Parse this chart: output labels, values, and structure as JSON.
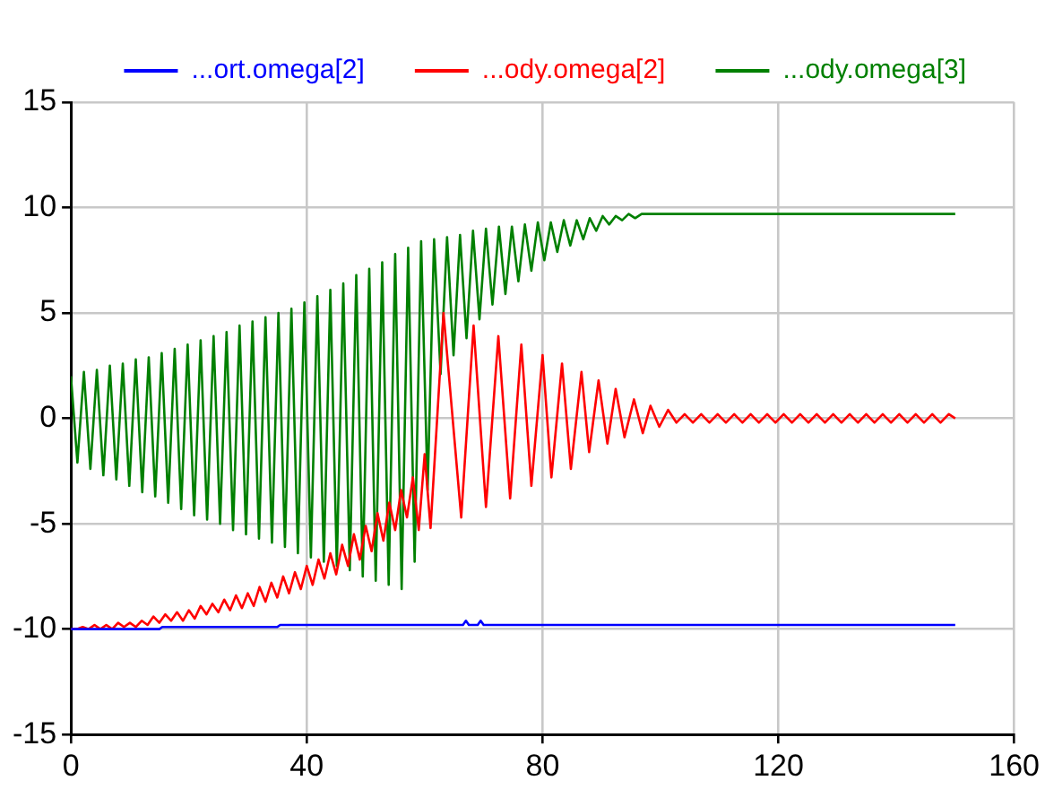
{
  "chart_data": {
    "type": "line",
    "xlim": [
      0,
      160
    ],
    "xticks": [
      0,
      40,
      80,
      120,
      160
    ],
    "ylim": [
      -15,
      15
    ],
    "yticks": [
      -15,
      -10,
      -5,
      0,
      5,
      10,
      15
    ],
    "grid": true,
    "legend": "top",
    "marker": "none",
    "line_style": "solid",
    "series": [
      {
        "name": "...ort.omega[2]",
        "color": "#0000ff",
        "type": "line",
        "x": [
          0,
          15,
          15.5,
          35,
          35.5,
          66.5,
          67,
          67.5,
          69,
          69.5,
          70,
          150
        ],
        "values": [
          -10,
          -10,
          -9.9,
          -9.9,
          -9.8,
          -9.8,
          -9.6,
          -9.8,
          -9.8,
          -9.6,
          -9.8,
          -9.8
        ]
      },
      {
        "name": "...ody.omega[2]",
        "color": "#ff0000",
        "type": "line",
        "x": [
          0,
          1,
          2,
          3,
          4,
          5,
          6,
          7,
          8,
          9,
          10,
          11,
          12,
          13,
          14,
          15,
          16,
          17,
          18,
          19,
          20,
          21,
          22,
          23,
          24,
          25,
          26,
          27,
          28,
          29,
          30,
          31,
          32,
          33,
          34,
          35,
          36,
          37,
          38,
          39,
          40,
          41,
          42,
          43,
          44,
          45,
          46,
          47,
          48,
          49,
          50,
          51,
          52,
          53,
          54,
          55,
          56,
          57,
          58,
          59,
          60,
          61,
          63.2,
          66.2,
          68.3,
          70.4,
          72.5,
          74.5,
          76.4,
          78.1,
          80,
          81.5,
          83.3,
          84.8,
          86.6,
          87.9,
          89.5,
          91,
          92.4,
          93.9,
          95.5,
          97,
          98.3,
          99.8,
          101.3,
          102.7,
          104.1,
          105.5,
          106.9,
          108.3,
          109.7,
          111.1,
          112.5,
          113.9,
          115.3,
          116.7,
          118.1,
          119.5,
          120.9,
          122.3,
          123.7,
          125.1,
          126.5,
          127.9,
          129.3,
          130.7,
          132.1,
          133.5,
          134.9,
          136.3,
          137.7,
          139.1,
          140.5,
          141.9,
          143.3,
          144.7,
          146.1,
          147.5,
          148.9,
          150
        ],
        "values": [
          -10,
          -10,
          -9.9,
          -10,
          -9.8,
          -10,
          -9.8,
          -10,
          -9.7,
          -9.9,
          -9.7,
          -9.9,
          -9.6,
          -9.8,
          -9.4,
          -9.7,
          -9.3,
          -9.6,
          -9.2,
          -9.6,
          -9.1,
          -9.5,
          -8.9,
          -9.3,
          -8.8,
          -9.2,
          -8.6,
          -9.1,
          -8.4,
          -9,
          -8.3,
          -8.9,
          -8,
          -8.7,
          -7.8,
          -8.5,
          -7.5,
          -8.3,
          -7.3,
          -8.1,
          -7,
          -7.9,
          -6.7,
          -7.6,
          -6.4,
          -7.4,
          -6,
          -7,
          -5.5,
          -6.7,
          -5.1,
          -6.3,
          -4.5,
          -5.8,
          -4,
          -5.3,
          -3.4,
          -4.7,
          -2.8,
          -5.3,
          -1.7,
          -5.2,
          5,
          -4.7,
          4.4,
          -4.2,
          3.9,
          -3.8,
          3.5,
          -3.2,
          3,
          -2.8,
          2.6,
          -2.4,
          2.2,
          -1.6,
          1.8,
          -1.2,
          1.4,
          -0.9,
          0.9,
          -0.7,
          0.6,
          -0.4,
          0.4,
          -0.2,
          0.2,
          -0.2,
          0.2,
          -0.2,
          0.2,
          -0.2,
          0.2,
          -0.2,
          0.2,
          -0.2,
          0.2,
          -0.2,
          0.2,
          -0.2,
          0.2,
          -0.2,
          0.2,
          -0.2,
          0.2,
          -0.2,
          0.2,
          -0.2,
          0.2,
          -0.2,
          0.2,
          -0.2,
          0.2,
          -0.2,
          0.2,
          -0.2,
          0.2,
          -0.2,
          0.2,
          0
        ]
      },
      {
        "name": "...ody.omega[3]",
        "color": "#008000",
        "type": "line",
        "x": [
          0,
          1.1,
          2.2,
          3.3,
          4.4,
          5.5,
          6.6,
          7.7,
          8.8,
          9.9,
          11,
          12.1,
          13.2,
          14.3,
          15.4,
          16.5,
          17.6,
          18.7,
          19.8,
          20.9,
          22,
          23.1,
          24.2,
          25.3,
          26.4,
          27.5,
          28.6,
          29.7,
          30.8,
          31.9,
          33,
          34.1,
          35.2,
          36.3,
          37.4,
          38.5,
          39.6,
          40.7,
          41.8,
          42.9,
          44,
          45.1,
          46.2,
          47.3,
          48.4,
          49.5,
          50.6,
          51.7,
          52.8,
          53.9,
          55,
          56.1,
          57.2,
          58.3,
          59.4,
          60.5,
          61.6,
          62.7,
          63.8,
          64.9,
          66,
          67.1,
          68.2,
          69.3,
          70.4,
          71.5,
          72.6,
          73.7,
          74.8,
          75.9,
          77,
          78.1,
          79.2,
          80.3,
          81.4,
          82.5,
          83.6,
          84.7,
          85.8,
          86.9,
          88,
          89.1,
          90.2,
          91.3,
          92.4,
          93.5,
          94.6,
          95.7,
          96.8,
          98,
          150
        ],
        "values": [
          2,
          -2.1,
          2.2,
          -2.4,
          2.3,
          -2.7,
          2.5,
          -2.9,
          2.6,
          -3.2,
          2.8,
          -3.5,
          2.9,
          -3.7,
          3.1,
          -4,
          3.3,
          -4.3,
          3.5,
          -4.6,
          3.7,
          -4.8,
          3.9,
          -5,
          4.1,
          -5.3,
          4.4,
          -5.5,
          4.6,
          -5.7,
          4.8,
          -5.9,
          5,
          -6.1,
          5.2,
          -6.4,
          5.5,
          -6.6,
          5.8,
          -6.8,
          6.1,
          -7,
          6.4,
          -7.2,
          6.8,
          -7.5,
          7.1,
          -7.7,
          7.4,
          -7.9,
          7.8,
          -8.1,
          8.1,
          -6.8,
          8.4,
          -3.4,
          8.5,
          2.1,
          8.6,
          3,
          8.7,
          3.8,
          8.9,
          4.7,
          9,
          5.4,
          9.1,
          5.9,
          9.1,
          6.5,
          9.2,
          7,
          9.3,
          7.5,
          9.3,
          7.9,
          9.4,
          8.2,
          9.4,
          8.5,
          9.5,
          8.9,
          9.6,
          9.2,
          9.6,
          9.4,
          9.7,
          9.5,
          9.7,
          9.7,
          9.7
        ]
      }
    ]
  }
}
